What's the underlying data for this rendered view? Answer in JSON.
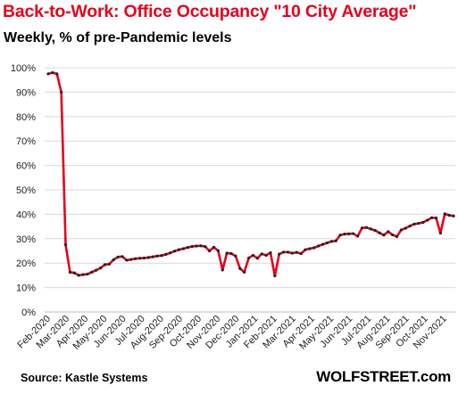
{
  "header": {
    "title": "Back-to-Work:  Office Occupancy \"10 City Average\"",
    "subtitle": "Weekly, % of pre-Pandemic levels"
  },
  "footer": {
    "source": "Source: Kastle Systems",
    "brand": "WOLFSTREET.com"
  },
  "colors": {
    "line": "#e8001c",
    "marker": "#222222",
    "grid": "#d9d9d9",
    "title": "#e8001c"
  },
  "chart_data": {
    "type": "line",
    "title": "Back-to-Work:  Office Occupancy \"10 City Average\"",
    "subtitle": "Weekly, % of pre-Pandemic levels",
    "xlabel": "",
    "ylabel": "",
    "ylim": [
      0,
      100
    ],
    "y_ticks": [
      "0%",
      "10%",
      "20%",
      "30%",
      "40%",
      "50%",
      "60%",
      "70%",
      "80%",
      "90%",
      "100%"
    ],
    "x_tick_labels": [
      "Feb-2020",
      "Mar-2020",
      "Apr-2020",
      "May-2020",
      "Jun-2020",
      "Jul-2020",
      "Aug-2020",
      "Sep-2020",
      "Oct-2020",
      "Nov-2020",
      "Dec-2020",
      "Jan-2021",
      "Feb-2021",
      "Mar-2021",
      "Apr-2021",
      "May-2021",
      "Jun-2021",
      "Jul-2021",
      "Aug-2021",
      "Sep-2021",
      "Oct-2021",
      "Nov-2021"
    ],
    "grid": true,
    "legend": "none",
    "series": [
      {
        "values": [
          97.5,
          98,
          97.5,
          90,
          27.5,
          16.3,
          16,
          15,
          15.3,
          15.5,
          16.3,
          17.1,
          18,
          19.4,
          19.6,
          21.4,
          22.5,
          22.7,
          21.2,
          21.5,
          21.8,
          22,
          22.1,
          22.3,
          22.6,
          22.9,
          23.1,
          23.6,
          24.2,
          24.9,
          25.5,
          25.9,
          26.4,
          26.8,
          27,
          27.1,
          26.8,
          25,
          26.5,
          25.1,
          17.2,
          24.1,
          23.9,
          22.9,
          17.8,
          16.3,
          22.1,
          23.2,
          22,
          23.8,
          23.2,
          24.3,
          14.8,
          23.7,
          24.5,
          24.5,
          24.1,
          24.4,
          23.9,
          25.5,
          25.9,
          26.3,
          27,
          27.7,
          28.3,
          28.9,
          29.1,
          31.5,
          31.9,
          32,
          32.1,
          31,
          34.4,
          34.6,
          34,
          33.4,
          32.4,
          31.5,
          32.9,
          31.6,
          30.9,
          33.6,
          34.3,
          35.2,
          36,
          36.3,
          36.7,
          37.6,
          38.6,
          38.5,
          32.3,
          40.2,
          39.6,
          39.3
        ]
      }
    ]
  }
}
